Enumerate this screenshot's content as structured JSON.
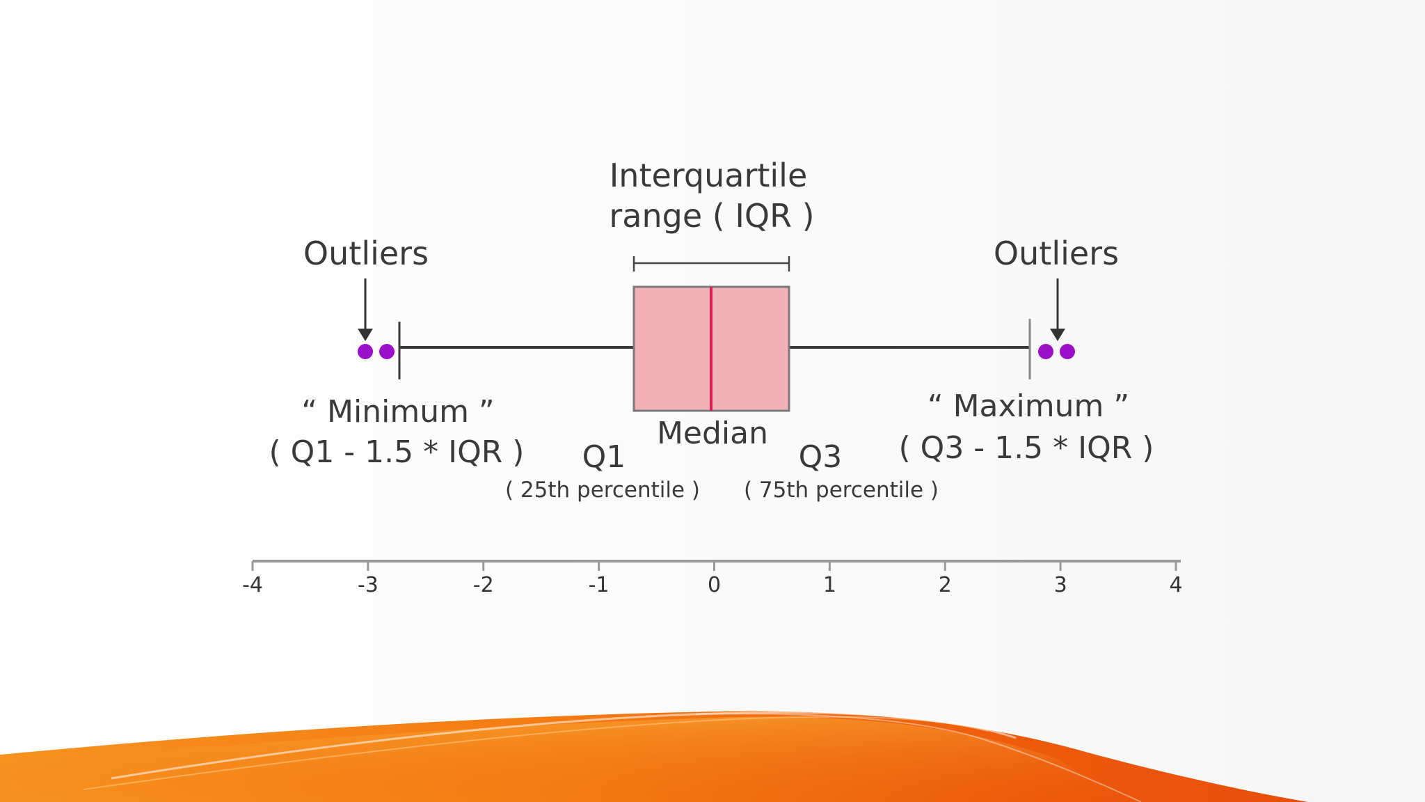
{
  "labels": {
    "iqr_line1": "Interquartile",
    "iqr_line2": "range ( IQR )",
    "outliers_left": "Outliers",
    "outliers_right": "Outliers",
    "minimum_line1": "“ Minimum ”",
    "minimum_line2": "( Q1 - 1.5 * IQR )",
    "maximum_line1": "“ Maximum ”",
    "maximum_line2": "( Q3 - 1.5 * IQR )",
    "median": "Median",
    "q1": "Q1",
    "q1_sub": "( 25th percentile )",
    "q3": "Q3",
    "q3_sub": "( 75th percentile )"
  },
  "axis": {
    "ticks": [
      "-4",
      "-3",
      "-2",
      "-1",
      "0",
      "1",
      "2",
      "3",
      "4"
    ]
  },
  "colors": {
    "box_fill": "#f2b1b6",
    "box_stroke": "#7a7a7a",
    "median_line": "#d9204f",
    "outlier_points": "#9a10c9",
    "whisker": "#3a3a3a",
    "axis": "#9a9a9a",
    "wave_orange": "#f26a10"
  }
}
